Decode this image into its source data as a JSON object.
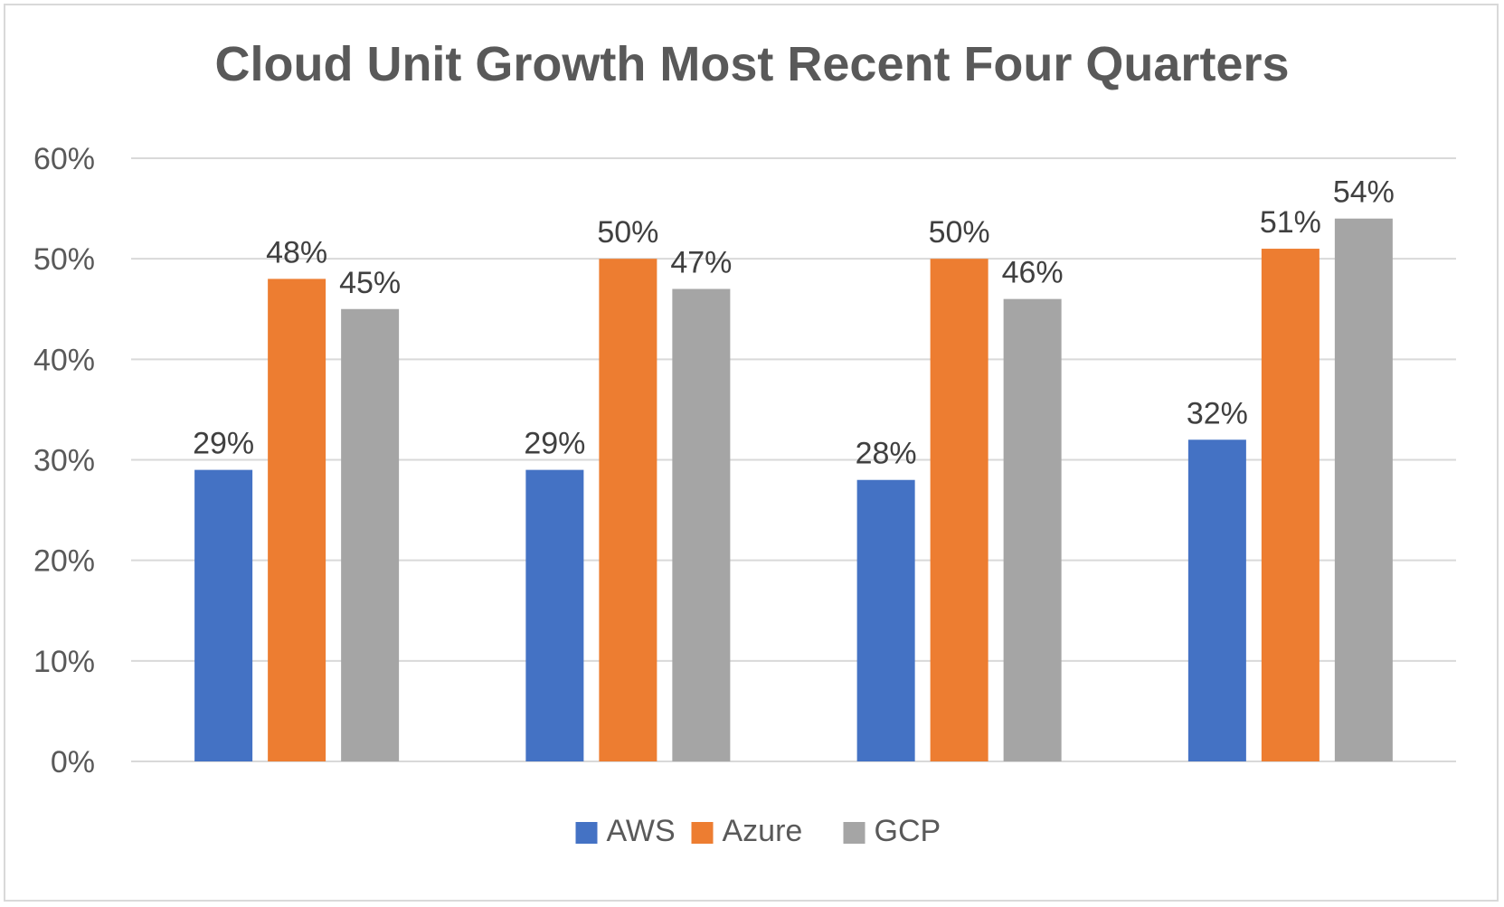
{
  "chart_data": {
    "type": "bar",
    "title": "Cloud Unit Growth Most Recent Four Quarters",
    "xlabel": "",
    "ylabel": "",
    "categories": [
      "",
      "",
      "",
      ""
    ],
    "series": [
      {
        "name": "AWS",
        "values": [
          29,
          29,
          28,
          32
        ],
        "labels": [
          "29%",
          "29%",
          "28%",
          "32%"
        ],
        "color": "#4472c4"
      },
      {
        "name": "Azure",
        "values": [
          48,
          50,
          50,
          51
        ],
        "labels": [
          "48%",
          "50%",
          "50%",
          "51%"
        ],
        "color": "#ed7d31"
      },
      {
        "name": "GCP",
        "values": [
          45,
          47,
          46,
          54
        ],
        "labels": [
          "45%",
          "47%",
          "46%",
          "54%"
        ],
        "color": "#a5a5a5"
      }
    ],
    "ylim": [
      0,
      60
    ],
    "yticks": [
      "0%",
      "10%",
      "20%",
      "30%",
      "40%",
      "50%",
      "60%"
    ],
    "grid": true,
    "legend_position": "bottom"
  }
}
